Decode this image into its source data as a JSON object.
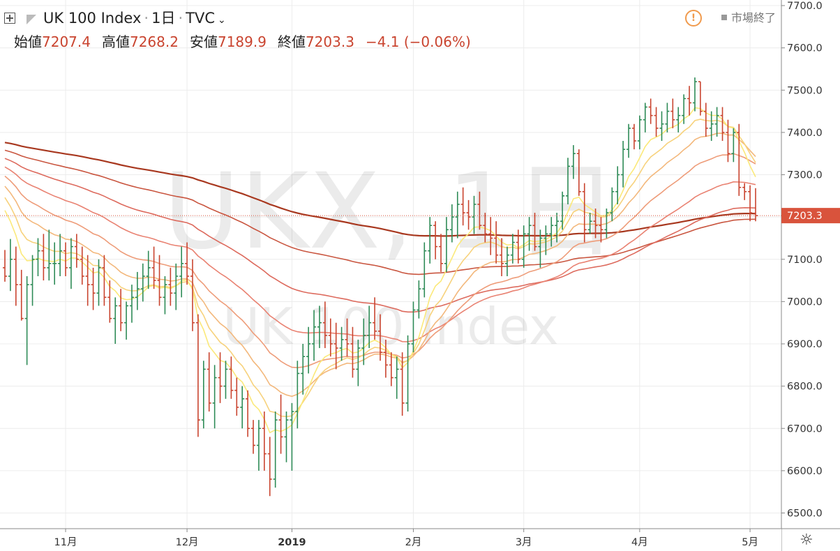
{
  "header": {
    "symbol": "UK 100 Index",
    "interval": "1日",
    "source": "TVC",
    "status": "市場終了"
  },
  "ohlc": {
    "open_label": "始値",
    "open": "7207.4",
    "high_label": "高値",
    "high": "7268.2",
    "low_label": "安値",
    "low": "7189.9",
    "close_label": "終値",
    "close": "7203.3",
    "change": "−4.1 (−0.06%)"
  },
  "watermark": {
    "symbol": "UKX, 1日",
    "name": "UK 100 Index"
  },
  "colors": {
    "up": "#2e8b57",
    "down": "#c9442f",
    "price_tag": "#d9533c",
    "grid": "#ececec"
  },
  "chart_data": {
    "type": "candlestick",
    "title": "UK 100 Index · 1日 · TVC",
    "y_axis": {
      "min": 6475,
      "max": 7725,
      "ticks": [
        7700,
        7600,
        7500,
        7400,
        7300,
        7200,
        7100,
        7000,
        6900,
        6800,
        6700,
        6600,
        6500
      ],
      "tick_labels": [
        "7700.0",
        "7600.0",
        "7500.0",
        "7400.0",
        "7300.0",
        "7200.0",
        "7100.0",
        "7000.0",
        "6900.0",
        "6800.0",
        "6700.0",
        "6600.0",
        "6500.0"
      ]
    },
    "x_axis": {
      "ticks": [
        {
          "i": 11,
          "label": "11月"
        },
        {
          "i": 33,
          "label": "12月"
        },
        {
          "i": 52,
          "label": "2019"
        },
        {
          "i": 74,
          "label": "2月"
        },
        {
          "i": 94,
          "label": "3月"
        },
        {
          "i": 115,
          "label": "4月"
        },
        {
          "i": 135,
          "label": "5月"
        }
      ]
    },
    "last_price": 7203.3,
    "last_price_label": "7203.3",
    "candles": [
      [
        7080,
        7122,
        7047,
        7060
      ],
      [
        7060,
        7148,
        7025,
        7100
      ],
      [
        7100,
        7130,
        6990,
        7040
      ],
      [
        7040,
        7075,
        6955,
        6960
      ],
      [
        6960,
        7060,
        6850,
        7040
      ],
      [
        7040,
        7110,
        6990,
        7100
      ],
      [
        7100,
        7150,
        7060,
        7120
      ],
      [
        7120,
        7160,
        7050,
        7080
      ],
      [
        7080,
        7170,
        7050,
        7090
      ],
      [
        7090,
        7140,
        7040,
        7090
      ],
      [
        7090,
        7160,
        7060,
        7120
      ],
      [
        7120,
        7140,
        7060,
        7080
      ],
      [
        7080,
        7150,
        7030,
        7130
      ],
      [
        7130,
        7160,
        7080,
        7100
      ],
      [
        7100,
        7130,
        7040,
        7060
      ],
      [
        7060,
        7110,
        6990,
        7040
      ],
      [
        7040,
        7080,
        6980,
        7020
      ],
      [
        7020,
        7100,
        6990,
        7080
      ],
      [
        7080,
        7110,
        6990,
        7010
      ],
      [
        7010,
        7050,
        6950,
        6960
      ],
      [
        6960,
        7010,
        6900,
        6990
      ],
      [
        6990,
        7030,
        6930,
        6950
      ],
      [
        6950,
        7000,
        6910,
        6990
      ],
      [
        6990,
        7040,
        6950,
        7010
      ],
      [
        7010,
        7070,
        6980,
        7030
      ],
      [
        7030,
        7090,
        7000,
        7060
      ],
      [
        7060,
        7120,
        7030,
        7080
      ],
      [
        7080,
        7130,
        7030,
        7050
      ],
      [
        7050,
        7110,
        6990,
        7010
      ],
      [
        7010,
        7060,
        6970,
        7040
      ],
      [
        7040,
        7080,
        6990,
        7020
      ],
      [
        7020,
        7090,
        6980,
        7060
      ],
      [
        7060,
        7130,
        7010,
        7090
      ],
      [
        7090,
        7140,
        7040,
        7060
      ],
      [
        7060,
        7100,
        6930,
        6950
      ],
      [
        6950,
        6970,
        6680,
        6720
      ],
      [
        6720,
        6860,
        6700,
        6840
      ],
      [
        6840,
        6880,
        6740,
        6760
      ],
      [
        6760,
        6850,
        6700,
        6820
      ],
      [
        6820,
        6880,
        6760,
        6800
      ],
      [
        6800,
        6860,
        6770,
        6840
      ],
      [
        6840,
        6870,
        6770,
        6790
      ],
      [
        6790,
        6820,
        6730,
        6750
      ],
      [
        6750,
        6800,
        6700,
        6770
      ],
      [
        6770,
        6790,
        6680,
        6700
      ],
      [
        6700,
        6720,
        6640,
        6660
      ],
      [
        6660,
        6720,
        6600,
        6700
      ],
      [
        6700,
        6740,
        6600,
        6640
      ],
      [
        6640,
        6680,
        6540,
        6580
      ],
      [
        6580,
        6740,
        6560,
        6720
      ],
      [
        6720,
        6780,
        6640,
        6680
      ],
      [
        6680,
        6740,
        6620,
        6720
      ],
      [
        6720,
        6760,
        6600,
        6740
      ],
      [
        6740,
        6860,
        6700,
        6830
      ],
      [
        6830,
        6900,
        6780,
        6870
      ],
      [
        6870,
        6940,
        6830,
        6900
      ],
      [
        6900,
        6980,
        6860,
        6940
      ],
      [
        6940,
        6990,
        6890,
        6950
      ],
      [
        6950,
        7000,
        6890,
        6920
      ],
      [
        6920,
        6960,
        6870,
        6900
      ],
      [
        6900,
        6950,
        6840,
        6890
      ],
      [
        6890,
        6940,
        6860,
        6910
      ],
      [
        6910,
        6960,
        6870,
        6900
      ],
      [
        6900,
        6940,
        6820,
        6840
      ],
      [
        6840,
        6910,
        6800,
        6890
      ],
      [
        6890,
        6960,
        6850,
        6920
      ],
      [
        6920,
        6990,
        6890,
        6950
      ],
      [
        6950,
        7010,
        6910,
        6930
      ],
      [
        6930,
        6970,
        6860,
        6880
      ],
      [
        6880,
        6910,
        6820,
        6850
      ],
      [
        6850,
        6880,
        6800,
        6820
      ],
      [
        6820,
        6870,
        6770,
        6840
      ],
      [
        6840,
        6880,
        6730,
        6760
      ],
      [
        6760,
        6920,
        6740,
        6900
      ],
      [
        6900,
        7000,
        6880,
        6980
      ],
      [
        6980,
        7050,
        6960,
        7030
      ],
      [
        7030,
        7140,
        7010,
        7120
      ],
      [
        7120,
        7200,
        7090,
        7180
      ],
      [
        7180,
        7190,
        7100,
        7130
      ],
      [
        7130,
        7160,
        7070,
        7090
      ],
      [
        7090,
        7200,
        7070,
        7170
      ],
      [
        7170,
        7230,
        7140,
        7200
      ],
      [
        7200,
        7260,
        7150,
        7230
      ],
      [
        7230,
        7270,
        7180,
        7210
      ],
      [
        7210,
        7240,
        7170,
        7200
      ],
      [
        7200,
        7250,
        7160,
        7230
      ],
      [
        7230,
        7260,
        7170,
        7180
      ],
      [
        7180,
        7210,
        7140,
        7160
      ],
      [
        7160,
        7200,
        7110,
        7150
      ],
      [
        7150,
        7190,
        7090,
        7110
      ],
      [
        7110,
        7150,
        7060,
        7090
      ],
      [
        7090,
        7130,
        7060,
        7110
      ],
      [
        7110,
        7160,
        7090,
        7140
      ],
      [
        7140,
        7170,
        7090,
        7100
      ],
      [
        7100,
        7180,
        7080,
        7160
      ],
      [
        7160,
        7200,
        7120,
        7180
      ],
      [
        7180,
        7210,
        7120,
        7130
      ],
      [
        7130,
        7170,
        7080,
        7150
      ],
      [
        7150,
        7180,
        7110,
        7160
      ],
      [
        7160,
        7200,
        7130,
        7180
      ],
      [
        7180,
        7210,
        7140,
        7190
      ],
      [
        7190,
        7260,
        7170,
        7250
      ],
      [
        7250,
        7340,
        7230,
        7320
      ],
      [
        7320,
        7370,
        7290,
        7350
      ],
      [
        7350,
        7360,
        7250,
        7260
      ],
      [
        7260,
        7280,
        7140,
        7170
      ],
      [
        7170,
        7210,
        7160,
        7190
      ],
      [
        7190,
        7220,
        7150,
        7180
      ],
      [
        7180,
        7200,
        7140,
        7170
      ],
      [
        7170,
        7220,
        7150,
        7210
      ],
      [
        7210,
        7270,
        7190,
        7260
      ],
      [
        7260,
        7320,
        7230,
        7300
      ],
      [
        7300,
        7380,
        7270,
        7360
      ],
      [
        7360,
        7420,
        7340,
        7410
      ],
      [
        7410,
        7420,
        7360,
        7380
      ],
      [
        7380,
        7440,
        7360,
        7430
      ],
      [
        7430,
        7470,
        7400,
        7460
      ],
      [
        7460,
        7480,
        7420,
        7440
      ],
      [
        7440,
        7460,
        7390,
        7410
      ],
      [
        7410,
        7450,
        7380,
        7420
      ],
      [
        7420,
        7470,
        7400,
        7450
      ],
      [
        7450,
        7480,
        7410,
        7430
      ],
      [
        7430,
        7460,
        7400,
        7440
      ],
      [
        7440,
        7490,
        7420,
        7480
      ],
      [
        7480,
        7510,
        7440,
        7470
      ],
      [
        7470,
        7530,
        7450,
        7520
      ],
      [
        7520,
        7520,
        7440,
        7450
      ],
      [
        7450,
        7470,
        7390,
        7410
      ],
      [
        7410,
        7450,
        7380,
        7420
      ],
      [
        7420,
        7460,
        7390,
        7440
      ],
      [
        7440,
        7460,
        7380,
        7400
      ],
      [
        7400,
        7430,
        7330,
        7350
      ],
      [
        7350,
        7410,
        7330,
        7400
      ],
      [
        7400,
        7420,
        7250,
        7270
      ],
      [
        7270,
        7280,
        7240,
        7260
      ],
      [
        7260,
        7275,
        7190,
        7210
      ],
      [
        7207.4,
        7268.2,
        7189.9,
        7203.3
      ]
    ],
    "moving_averages": {
      "type": "EMA ribbon",
      "periods": [
        8,
        13,
        21,
        34,
        55,
        89,
        144,
        233
      ],
      "colors": [
        "#fbe97a",
        "#f7d27c",
        "#f3b87c",
        "#ee9c79",
        "#e98272",
        "#dd6a5d",
        "#c9553f",
        "#a8381f"
      ]
    }
  }
}
